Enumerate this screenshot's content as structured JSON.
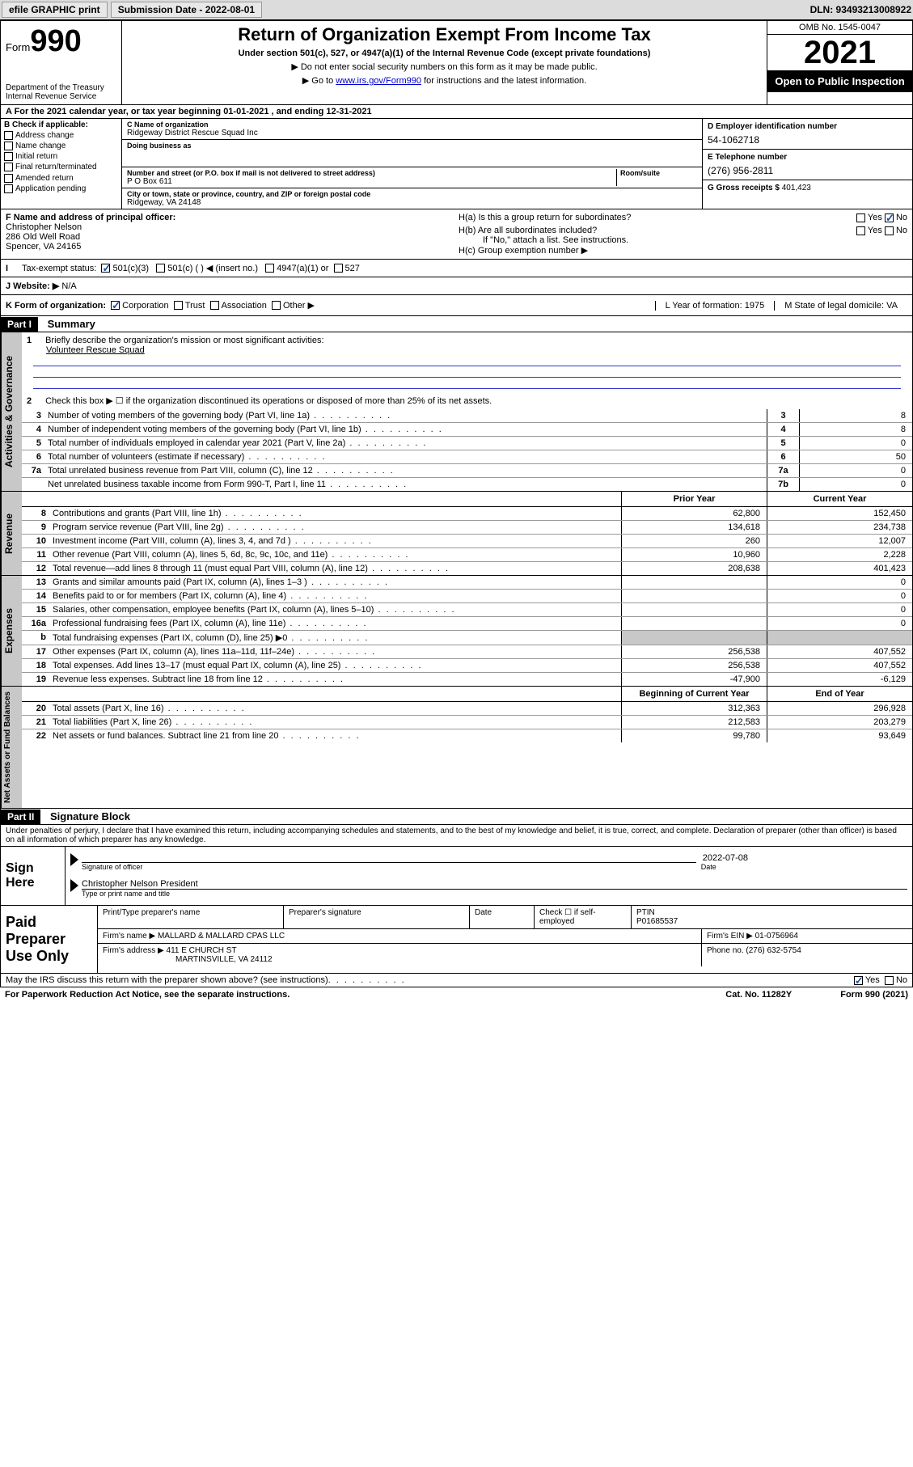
{
  "topbar": {
    "efile": "efile GRAPHIC print",
    "submission_label": "Submission Date - 2022-08-01",
    "dln": "DLN: 93493213008922"
  },
  "header": {
    "form_small": "Form",
    "form_big": "990",
    "dept": "Department of the Treasury",
    "irs": "Internal Revenue Service",
    "title": "Return of Organization Exempt From Income Tax",
    "sub": "Under section 501(c), 527, or 4947(a)(1) of the Internal Revenue Code (except private foundations)",
    "note1": "▶ Do not enter social security numbers on this form as it may be made public.",
    "note2_a": "▶ Go to ",
    "note2_link": "www.irs.gov/Form990",
    "note2_b": " for instructions and the latest information.",
    "omb": "OMB No. 1545-0047",
    "year": "2021",
    "open": "Open to Public Inspection"
  },
  "row_a": "A For the 2021 calendar year, or tax year beginning 01-01-2021    , and ending 12-31-2021",
  "col_b": {
    "title": "B Check if applicable:",
    "opts": [
      "Address change",
      "Name change",
      "Initial return",
      "Final return/terminated",
      "Amended return",
      "Application pending"
    ]
  },
  "col_c": {
    "name_label": "C Name of organization",
    "name": "Ridgeway District Rescue Squad Inc",
    "dba_label": "Doing business as",
    "dba": "",
    "street_label": "Number and street (or P.O. box if mail is not delivered to street address)",
    "suite_label": "Room/suite",
    "street": "P O Box 611",
    "city_label": "City or town, state or province, country, and ZIP or foreign postal code",
    "city": "Ridgeway, VA  24148"
  },
  "col_d": {
    "ein_label": "D Employer identification number",
    "ein": "54-1062718",
    "phone_label": "E Telephone number",
    "phone": "(276) 956-2811",
    "gross_label": "G Gross receipts $",
    "gross": "401,423"
  },
  "row_f": {
    "label": "F  Name and address of principal officer:",
    "l1": "Christopher Nelson",
    "l2": "286 Old Well Road",
    "l3": "Spencer, VA  24165"
  },
  "row_h": {
    "ha": "H(a)  Is this a group return for subordinates?",
    "hb": "H(b)  Are all subordinates included?",
    "hnote": "If \"No,\" attach a list. See instructions.",
    "hc": "H(c)  Group exemption number ▶"
  },
  "row_i": {
    "label": "Tax-exempt status:",
    "o1": "501(c)(3)",
    "o2": "501(c) (  ) ◀ (insert no.)",
    "o3": "4947(a)(1) or",
    "o4": "527"
  },
  "row_j": {
    "label": "J   Website: ▶",
    "val": "N/A"
  },
  "row_k": {
    "label": "K Form of organization:",
    "o1": "Corporation",
    "o2": "Trust",
    "o3": "Association",
    "o4": "Other ▶",
    "l_year": "L Year of formation: 1975",
    "m_state": "M State of legal domicile: VA"
  },
  "part1": {
    "hdr": "Part I",
    "title": "Summary"
  },
  "activities": {
    "tab": "Activities & Governance",
    "r1_num": "1",
    "r1": "Briefly describe the organization's mission or most significant activities:",
    "r1_val": "Volunteer Rescue Squad",
    "r2_num": "2",
    "r2": "Check this box ▶ ☐  if the organization discontinued its operations or disposed of more than 25% of its net assets.",
    "rows": [
      {
        "n": "3",
        "t": "Number of voting members of the governing body (Part VI, line 1a)",
        "c": "3",
        "v": "8"
      },
      {
        "n": "4",
        "t": "Number of independent voting members of the governing body (Part VI, line 1b)",
        "c": "4",
        "v": "8"
      },
      {
        "n": "5",
        "t": "Total number of individuals employed in calendar year 2021 (Part V, line 2a)",
        "c": "5",
        "v": "0"
      },
      {
        "n": "6",
        "t": "Total number of volunteers (estimate if necessary)",
        "c": "6",
        "v": "50"
      },
      {
        "n": "7a",
        "t": "Total unrelated business revenue from Part VIII, column (C), line 12",
        "c": "7a",
        "v": "0"
      },
      {
        "n": "",
        "t": "Net unrelated business taxable income from Form 990-T, Part I, line 11",
        "c": "7b",
        "v": "0"
      }
    ]
  },
  "fin_hdr": {
    "c1": "Prior Year",
    "c2": "Current Year"
  },
  "revenue": {
    "tab": "Revenue",
    "rows": [
      {
        "n": "8",
        "t": "Contributions and grants (Part VIII, line 1h)",
        "c1": "62,800",
        "c2": "152,450"
      },
      {
        "n": "9",
        "t": "Program service revenue (Part VIII, line 2g)",
        "c1": "134,618",
        "c2": "234,738"
      },
      {
        "n": "10",
        "t": "Investment income (Part VIII, column (A), lines 3, 4, and 7d )",
        "c1": "260",
        "c2": "12,007"
      },
      {
        "n": "11",
        "t": "Other revenue (Part VIII, column (A), lines 5, 6d, 8c, 9c, 10c, and 11e)",
        "c1": "10,960",
        "c2": "2,228"
      },
      {
        "n": "12",
        "t": "Total revenue—add lines 8 through 11 (must equal Part VIII, column (A), line 12)",
        "c1": "208,638",
        "c2": "401,423"
      }
    ]
  },
  "expenses": {
    "tab": "Expenses",
    "rows": [
      {
        "n": "13",
        "t": "Grants and similar amounts paid (Part IX, column (A), lines 1–3 )",
        "c1": "",
        "c2": "0"
      },
      {
        "n": "14",
        "t": "Benefits paid to or for members (Part IX, column (A), line 4)",
        "c1": "",
        "c2": "0"
      },
      {
        "n": "15",
        "t": "Salaries, other compensation, employee benefits (Part IX, column (A), lines 5–10)",
        "c1": "",
        "c2": "0"
      },
      {
        "n": "16a",
        "t": "Professional fundraising fees (Part IX, column (A), line 11e)",
        "c1": "",
        "c2": "0"
      },
      {
        "n": "b",
        "t": "Total fundraising expenses (Part IX, column (D), line 25) ▶0",
        "c1": "SHADE",
        "c2": "SHADE"
      },
      {
        "n": "17",
        "t": "Other expenses (Part IX, column (A), lines 11a–11d, 11f–24e)",
        "c1": "256,538",
        "c2": "407,552"
      },
      {
        "n": "18",
        "t": "Total expenses. Add lines 13–17 (must equal Part IX, column (A), line 25)",
        "c1": "256,538",
        "c2": "407,552"
      },
      {
        "n": "19",
        "t": "Revenue less expenses. Subtract line 18 from line 12",
        "c1": "-47,900",
        "c2": "-6,129"
      }
    ]
  },
  "netassets": {
    "tab": "Net Assets or Fund Balances",
    "hdr_c1": "Beginning of Current Year",
    "hdr_c2": "End of Year",
    "rows": [
      {
        "n": "20",
        "t": "Total assets (Part X, line 16)",
        "c1": "312,363",
        "c2": "296,928"
      },
      {
        "n": "21",
        "t": "Total liabilities (Part X, line 26)",
        "c1": "212,583",
        "c2": "203,279"
      },
      {
        "n": "22",
        "t": "Net assets or fund balances. Subtract line 21 from line 20",
        "c1": "99,780",
        "c2": "93,649"
      }
    ]
  },
  "part2": {
    "hdr": "Part II",
    "title": "Signature Block"
  },
  "sig": {
    "decl": "Under penalties of perjury, I declare that I have examined this return, including accompanying schedules and statements, and to the best of my knowledge and belief, it is true, correct, and complete. Declaration of preparer (other than officer) is based on all information of which preparer has any knowledge.",
    "sign_here": "Sign Here",
    "sig_officer": "Signature of officer",
    "date": "Date",
    "date_val": "2022-07-08",
    "name": "Christopher Nelson  President",
    "name_label": "Type or print name and title"
  },
  "prep": {
    "label": "Paid Preparer Use Only",
    "r1_c1": "Print/Type preparer's name",
    "r1_c2": "Preparer's signature",
    "r1_c3": "Date",
    "r1_c4a": "Check ☐ if self-employed",
    "r1_c5": "PTIN",
    "r1_c5v": "P01685537",
    "r2_l": "Firm's name    ▶",
    "r2_v": "MALLARD & MALLARD CPAS LLC",
    "r2_r": "Firm's EIN ▶ 01-0756964",
    "r3_l": "Firm's address ▶",
    "r3_v1": "411 E CHURCH ST",
    "r3_v2": "MARTINSVILLE, VA  24112",
    "r3_r": "Phone no. (276) 632-5754"
  },
  "footer": {
    "discuss": "May the IRS discuss this return with the preparer shown above? (see instructions)",
    "yes": "Yes",
    "no": "No",
    "paperwork": "For Paperwork Reduction Act Notice, see the separate instructions.",
    "cat": "Cat. No. 11282Y",
    "form": "Form 990 (2021)"
  }
}
